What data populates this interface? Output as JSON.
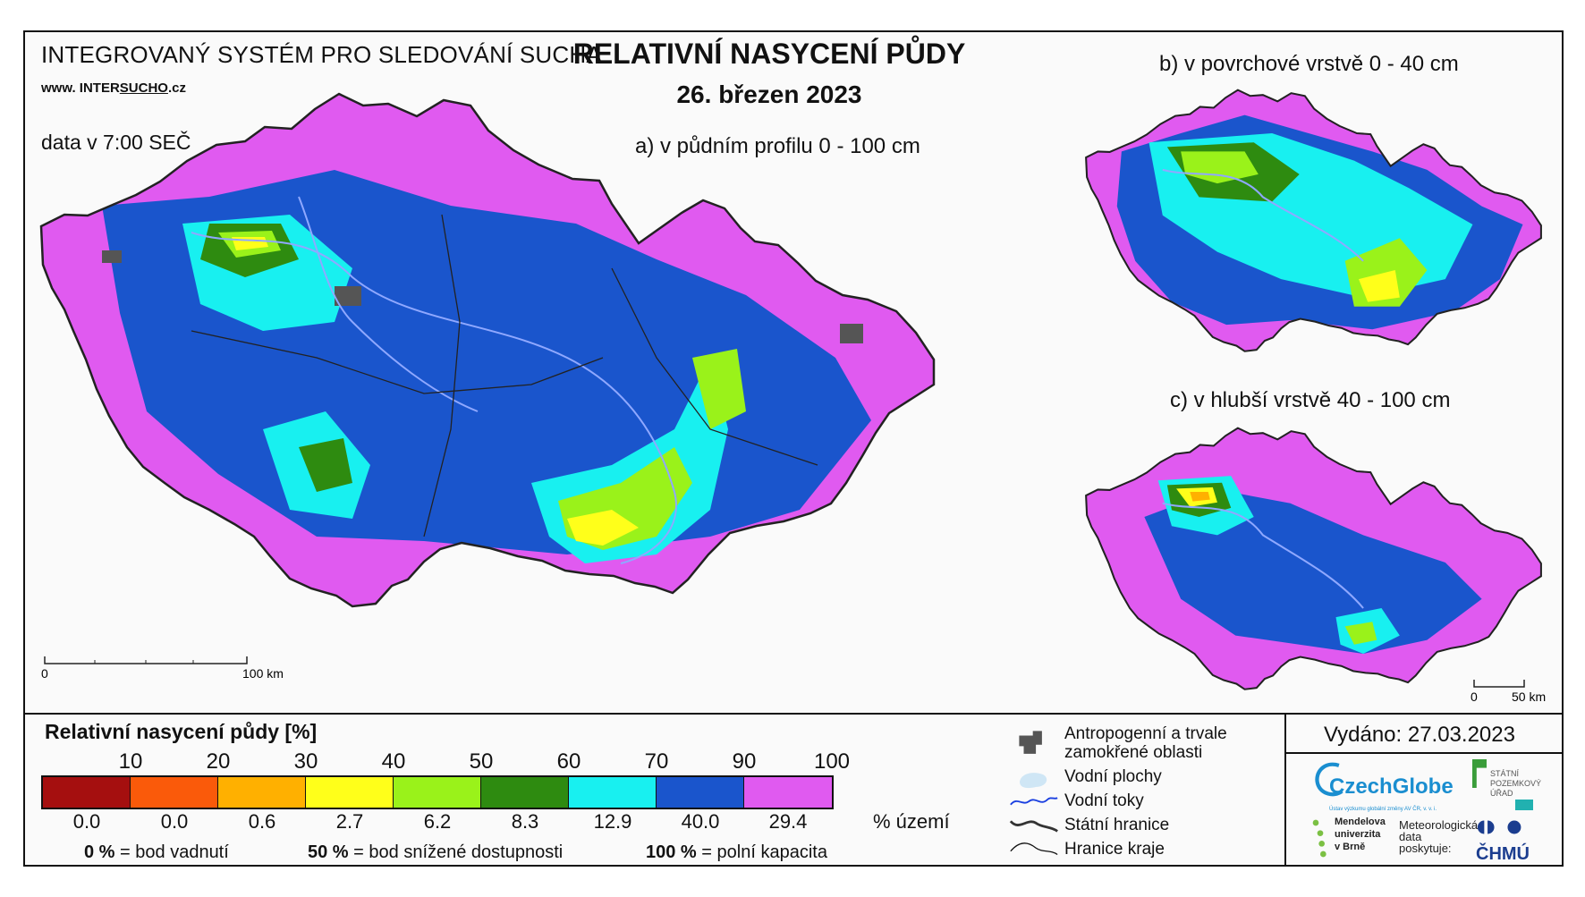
{
  "header": {
    "system_name": "INTEGROVANÝ SYSTÉM PRO SLEDOVÁNÍ SUCHA",
    "url_prefix": "www. INTER",
    "url_underlined": "SUCHO",
    "url_suffix": ".cz",
    "data_time": "data v 7:00 SEČ",
    "title": "RELATIVNÍ NASYCENÍ PŮDY",
    "date": "26. březen 2023"
  },
  "maps": {
    "a_label": "a) v půdním profilu 0 - 100 cm",
    "b_label": "b) v povrchové vrstvě 0 - 40 cm",
    "c_label": "c) v hlubší vrstvě 40 - 100 cm",
    "scale_main": {
      "start": "0",
      "end": "100 km"
    },
    "scale_small": {
      "start": "0",
      "end": "50 km"
    }
  },
  "legend": {
    "title": "Relativní nasycení půdy [%]",
    "thresholds": [
      "10",
      "20",
      "30",
      "40",
      "50",
      "60",
      "70",
      "90",
      "100"
    ],
    "classes": [
      {
        "color": "#a50f0f",
        "area_pct": "0.0"
      },
      {
        "color": "#fa5a0a",
        "area_pct": "0.0"
      },
      {
        "color": "#ffb000",
        "area_pct": "0.6"
      },
      {
        "color": "#ffff1a",
        "area_pct": "2.7"
      },
      {
        "color": "#9af21a",
        "area_pct": "6.2"
      },
      {
        "color": "#2e8b10",
        "area_pct": "8.3"
      },
      {
        "color": "#18f0f0",
        "area_pct": "12.9"
      },
      {
        "color": "#1a55cc",
        "area_pct": "40.0"
      },
      {
        "color": "#e05af0",
        "area_pct": "29.4"
      }
    ],
    "area_unit": "% území",
    "notes": [
      {
        "value": "0 %",
        "text": "= bod vadnutí"
      },
      {
        "value": "50 %",
        "text": "= bod snížené dostupnosti"
      },
      {
        "value": "100 %",
        "text": "= polní kapacita"
      }
    ]
  },
  "symbols": {
    "urban": "Antropogenní a trvale zamokřené oblasti",
    "water_bodies": "Vodní plochy",
    "streams": "Vodní toky",
    "state_border": "Státní hranice",
    "region_border": "Hranice kraje"
  },
  "footer": {
    "issued": "Vydáno: 27.03.2023",
    "czechglobe": "CzechGlobe",
    "czechglobe_sub": "Ústav výzkumu globální změny AV ČR, v. v. i.",
    "spu": "STÁTNÍ\nPOZEMKOVÝ\nÚŘAD",
    "mendel": "Mendelova\nuniverzita\nv Brně",
    "meteo": "Meteorologická\ndata\nposkytuje:",
    "chmu": "ČHMÚ"
  },
  "colors": {
    "magenta": "#e05af0",
    "blue": "#1a55cc",
    "cyan": "#18f0f0",
    "green": "#2e8b10",
    "lightgreen": "#9af21a",
    "yellow": "#ffff1a",
    "orange": "#ffb000",
    "urban": "#555555",
    "river": "#8fa8ff"
  }
}
